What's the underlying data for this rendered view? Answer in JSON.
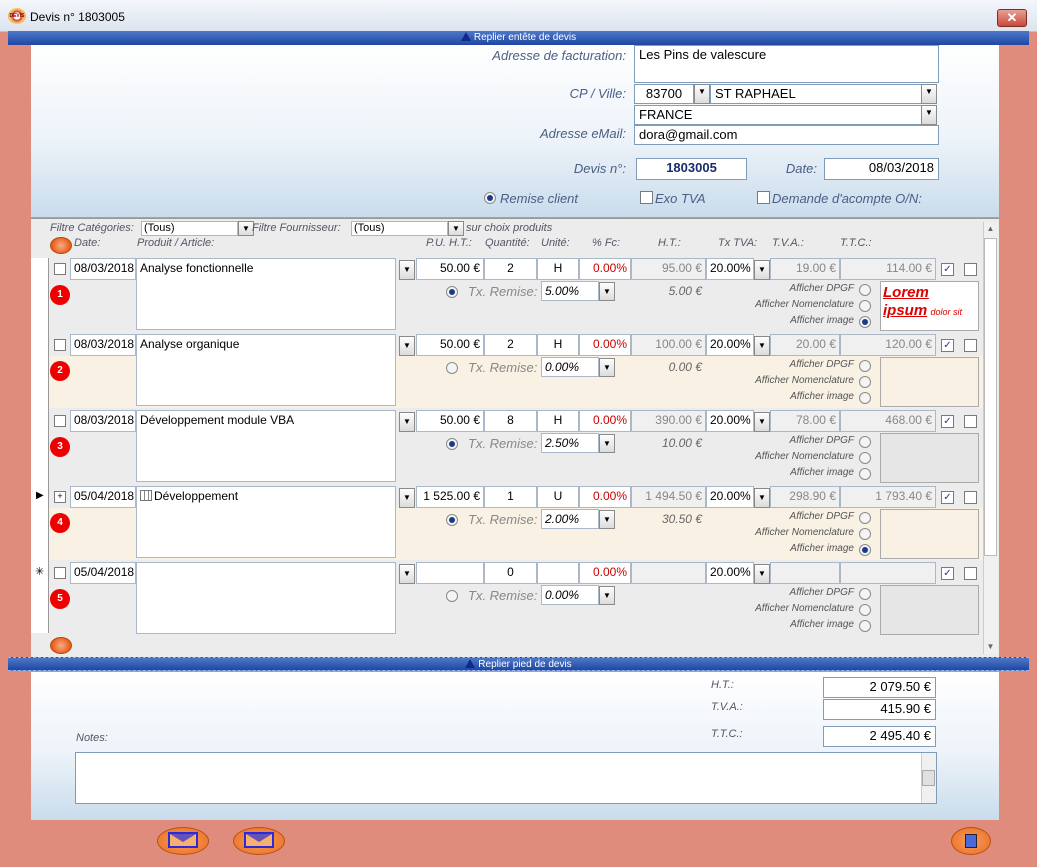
{
  "window": {
    "title": "Devis n° 1803005",
    "close_glyph": "✕",
    "icon_label": "DEVIS"
  },
  "header_bar": {
    "label": "Replier entête de devis"
  },
  "footer_bar": {
    "label": "Replier pied de devis"
  },
  "header": {
    "billing_label": "Adresse de facturation:",
    "billing_value": "Les Pins de valescure",
    "cp_label": "CP / Ville:",
    "cp_value": "83700",
    "city_value": "ST RAPHAEL",
    "country_value": "FRANCE",
    "email_label": "Adresse eMail:",
    "email_value": "dora@gmail.com",
    "devis_label": "Devis n°:",
    "devis_value": "1803005",
    "date_label": "Date:",
    "date_value": "08/03/2018",
    "remise_label": "Remise client",
    "exo_label": "Exo TVA",
    "acompte_label": "Demande d'acompte O/N:"
  },
  "filters": {
    "cat_label": "Filtre Catégories:",
    "cat_value": "(Tous)",
    "four_label": "Filtre Fournisseur:",
    "four_value": "(Tous)",
    "sur_label": "sur choix produits"
  },
  "columns": {
    "date": "Date:",
    "produit": "Produit / Article:",
    "pu": "P.U. H.T.:",
    "qte": "Quantité:",
    "unite": "Unité:",
    "fc": "% Fc:",
    "ht": "H.T.:",
    "txtva": "Tx TVA:",
    "tva": "T.V.A.:",
    "ttc": "T.T.C.:"
  },
  "options": {
    "dpgf": "Afficher DPGF",
    "nomenclature": "Afficher Nomenclature",
    "image": "Afficher image",
    "tx_remise": "Tx. Remise:"
  },
  "lines": [
    {
      "num": "1",
      "date": "08/03/2018",
      "produit": "Analyse fonctionnelle",
      "pu": "50.00 €",
      "qte": "2",
      "unite": "H",
      "fc": "0.00%",
      "ht": "95.00 €",
      "txtva": "20.00%",
      "tva": "19.00 €",
      "ttc": "114.00 €",
      "tx_remise": "5.00%",
      "remise_amt": "5.00 €"
    },
    {
      "num": "2",
      "date": "08/03/2018",
      "produit": "Analyse organique",
      "pu": "50.00 €",
      "qte": "2",
      "unite": "H",
      "fc": "0.00%",
      "ht": "100.00 €",
      "txtva": "20.00%",
      "tva": "20.00 €",
      "ttc": "120.00 €",
      "tx_remise": "0.00%",
      "remise_amt": "0.00 €"
    },
    {
      "num": "3",
      "date": "08/03/2018",
      "produit": "Développement module VBA",
      "pu": "50.00 €",
      "qte": "8",
      "unite": "H",
      "fc": "0.00%",
      "ht": "390.00 €",
      "txtva": "20.00%",
      "tva": "78.00 €",
      "ttc": "468.00 €",
      "tx_remise": "2.50%",
      "remise_amt": "10.00 €"
    },
    {
      "num": "4",
      "date": "05/04/2018",
      "produit": "Développement",
      "pu": "1 525.00 €",
      "qte": "1",
      "unite": "U",
      "fc": "0.00%",
      "ht": "1 494.50 €",
      "txtva": "20.00%",
      "tva": "298.90 €",
      "ttc": "1 793.40 €",
      "tx_remise": "2.00%",
      "remise_amt": "30.50 €"
    },
    {
      "num": "5",
      "date": "05/04/2018",
      "produit": "",
      "pu": "",
      "qte": "0",
      "unite": "",
      "fc": "0.00%",
      "ht": "",
      "txtva": "20.00%",
      "tva": "",
      "ttc": "",
      "tx_remise": "0.00%",
      "remise_amt": ""
    }
  ],
  "lorem": {
    "line1": "Lorem",
    "line2": "ipsum",
    "small": "dolor sit"
  },
  "totals": {
    "ht_label": "H.T.:",
    "ht_value": "2 079.50 €",
    "tva_label": "T.V.A.:",
    "tva_value": "415.90 €",
    "ttc_label": "T.T.C.:",
    "ttc_value": "2 495.40 €"
  },
  "notes": {
    "label": "Notes:",
    "value": ""
  },
  "row_markers": {
    "current": "▶",
    "new": "✳",
    "expand": "+"
  },
  "colors": {
    "accent": "#1f47a3",
    "background": "#e08c7c",
    "badge": "#e00000"
  }
}
